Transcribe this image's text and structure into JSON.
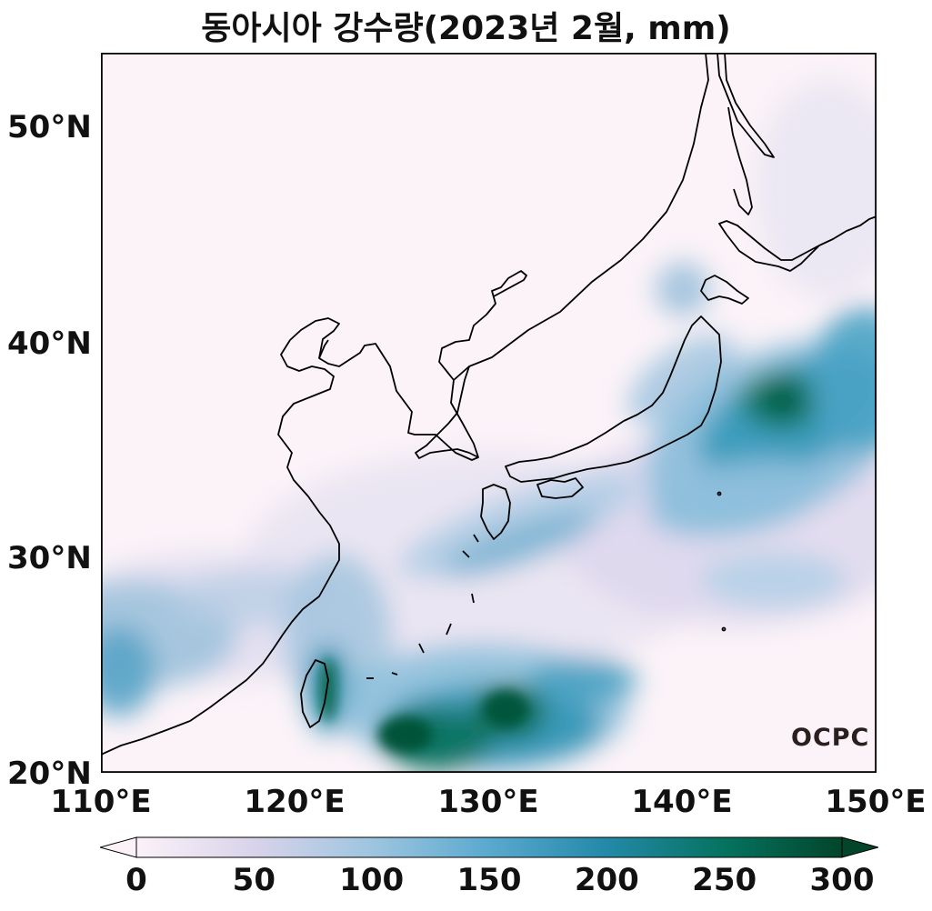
{
  "title": "동아시아 강수량(2023년 2월, mm)",
  "map": {
    "lon_range": [
      110,
      150
    ],
    "lat_range": [
      20,
      53.5
    ],
    "lat_ticks": [
      "20°N",
      "30°N",
      "40°N",
      "50°N"
    ],
    "lon_ticks": [
      "110°E",
      "120°E",
      "130°E",
      "140°E",
      "150°E"
    ]
  },
  "colorbar": {
    "min": 0,
    "max": 300,
    "tick_labels": [
      "0",
      "50",
      "100",
      "150",
      "200",
      "250",
      "300"
    ],
    "colors": [
      "#fbf2f8",
      "#d9d3ea",
      "#9ec5df",
      "#5aa9cf",
      "#2389a8",
      "#05735f",
      "#02452b"
    ]
  },
  "logo_text": "OCPC"
}
